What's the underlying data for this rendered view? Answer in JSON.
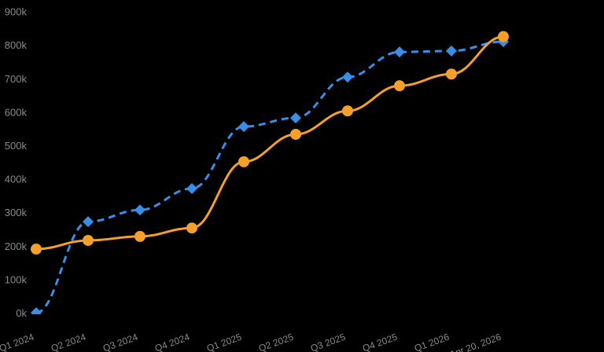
{
  "chart_data": {
    "type": "line",
    "title": "",
    "xlabel": "",
    "ylabel": "",
    "categories": [
      "Q1 2024",
      "Q2 2024",
      "Q3 2024",
      "Q4 2024",
      "Q1 2025",
      "Q2 2025",
      "Q3 2025",
      "Q4 2025",
      "Q1 2026",
      "Apr 20, 2026"
    ],
    "y_ticks": [
      "0k",
      "100k",
      "200k",
      "300k",
      "400k",
      "500k",
      "600k",
      "700k",
      "800k",
      "900k"
    ],
    "ylim": [
      0,
      900000
    ],
    "grid": false,
    "legend": "none",
    "background": "#000000",
    "series": [
      {
        "name": "dashed-blue",
        "color": "#3A8EE6",
        "line_style": "dashed",
        "marker": "diamond",
        "values": [
          0,
          272000,
          307000,
          371000,
          556000,
          582000,
          704000,
          779000,
          782000,
          810000
        ]
      },
      {
        "name": "solid-orange",
        "color": "#F5A02A",
        "line_style": "solid",
        "marker": "circle",
        "values": [
          190000,
          216000,
          228000,
          253000,
          451000,
          533000,
          603000,
          678000,
          713000,
          825000
        ]
      }
    ]
  }
}
